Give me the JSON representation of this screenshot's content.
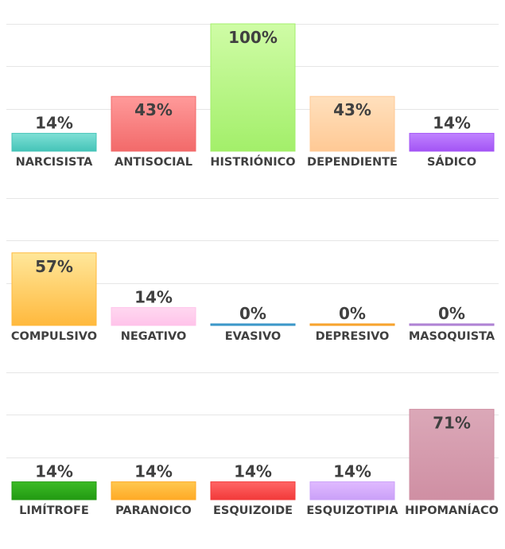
{
  "chart_data": [
    {
      "type": "bar",
      "categories": [
        "NARCISISTA",
        "ANTISOCIAL",
        "HISTRIÓNICO",
        "DEPENDIENTE",
        "SÁDICO"
      ],
      "values": [
        14,
        43,
        100,
        43,
        14
      ],
      "value_labels": [
        "14%",
        "43%",
        "100%",
        "43%",
        "14%"
      ],
      "colors": [
        [
          "#7fe0d6",
          "#45c4b8"
        ],
        [
          "#ff9a9a",
          "#f26a6a"
        ],
        [
          "#cffca6",
          "#a3ef6a"
        ],
        [
          "#ffe0bd",
          "#ffc995"
        ],
        [
          "#c083ff",
          "#a354f5"
        ]
      ],
      "ylim": [
        0,
        100
      ],
      "grid": true
    },
    {
      "type": "bar",
      "categories": [
        "COMPULSIVO",
        "NEGATIVO",
        "EVASIVO",
        "DEPRESIVO",
        "MASOQUISTA"
      ],
      "values": [
        57,
        14,
        0,
        0,
        0
      ],
      "value_labels": [
        "57%",
        "14%",
        "0%",
        "0%",
        "0%"
      ],
      "colors": [
        [
          "#ffe79a",
          "#ffb93d"
        ],
        [
          "#ffd8f0",
          "#ffc3ea"
        ],
        [
          "#66b3d9",
          "#2f8fc4"
        ],
        [
          "#ffbf5a",
          "#f59a1e"
        ],
        [
          "#c9a2e6",
          "#a778cf"
        ]
      ],
      "ylim": [
        0,
        100
      ],
      "grid": true
    },
    {
      "type": "bar",
      "categories": [
        "LIMÍTROFE",
        "PARANOICO",
        "ESQUIZOIDE",
        "ESQUIZOTIPIA",
        "HIPOMANÍACO"
      ],
      "values": [
        14,
        14,
        14,
        14,
        71
      ],
      "value_labels": [
        "14%",
        "14%",
        "14%",
        "14%",
        "71%"
      ],
      "colors": [
        [
          "#3cbb26",
          "#229a12"
        ],
        [
          "#ffc850",
          "#ffaa25"
        ],
        [
          "#ff6565",
          "#f23a3a"
        ],
        [
          "#e0baff",
          "#caa0f8"
        ],
        [
          "#dba8b8",
          "#cf8fa3"
        ]
      ],
      "ylim": [
        0,
        100
      ],
      "grid": true
    }
  ]
}
